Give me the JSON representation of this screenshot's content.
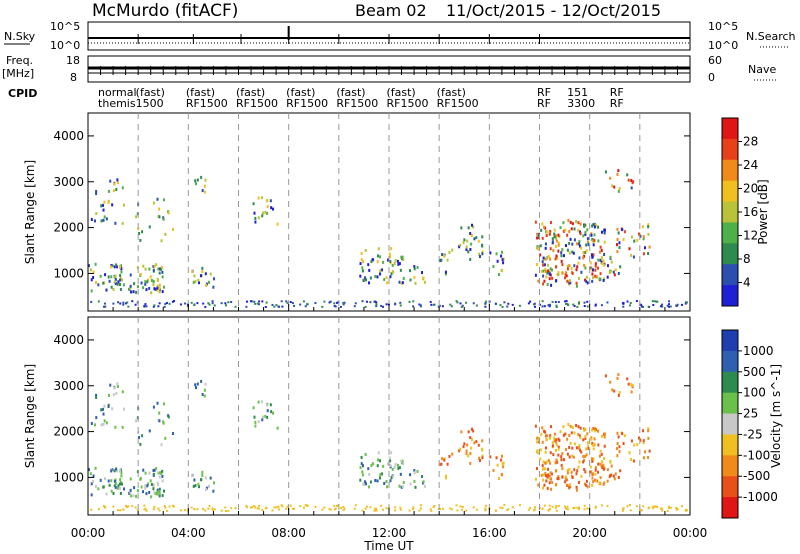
{
  "header": {
    "title": "McMurdo (fitACF)",
    "beam": "Beam 02",
    "date_range": "11/Oct/2015 - 12/Oct/2015"
  },
  "status_panels": {
    "nsky_label": "N.Sky",
    "nsky_ticks": [
      "10^5",
      "10^0"
    ],
    "nsearch_label": "N.Search",
    "nsearch_ticks": [
      "10^5",
      "10^0"
    ],
    "freq_label": "Freq.",
    "freq_unit": "[MHz]",
    "freq_ticks": [
      "18",
      "8"
    ],
    "nave_label": "Nave",
    "nave_ticks": [
      "60",
      "0"
    ],
    "cpid_label": "CPID",
    "cpid_line1": [
      "normal",
      "(fast)",
      "(fast)",
      "(fast)",
      "(fast)",
      "(fast)",
      "(fast)",
      "(fast)",
      "RF",
      "151",
      "RF"
    ],
    "cpid_line2": [
      "themis",
      "1500",
      "RF1500",
      "RF1500",
      "RF1500",
      "RF1500",
      "RF1500",
      "RF1500",
      "RF",
      "3300",
      "RF"
    ]
  },
  "colors": {
    "power_scale": [
      "#1f1fd6",
      "#2a4fb0",
      "#2f8a4f",
      "#4fb04a",
      "#b8c33a",
      "#f0c020",
      "#f08a1a",
      "#e8401a",
      "#e01515"
    ],
    "velocity_scale": [
      "#1f3fb0",
      "#2f5fb0",
      "#2f8a4f",
      "#6ac04a",
      "#c8c8c8",
      "#f0c020",
      "#f08a1a",
      "#e8501a",
      "#e01515"
    ]
  },
  "chart_data": [
    {
      "type": "heatmap",
      "title": "Power",
      "ylabel": "Slant Range [km]",
      "xlabel": "Time UT",
      "xlim": [
        0,
        24
      ],
      "ylim": [
        180,
        4500
      ],
      "x_ticks": [
        "00:00",
        "04:00",
        "08:00",
        "12:00",
        "16:00",
        "20:00",
        "00:00"
      ],
      "y_ticks": [
        "1000",
        "2000",
        "3000",
        "4000"
      ],
      "colorbar_label": "Power [dB]",
      "colorbar_ticks": [
        "4",
        "8",
        "12",
        "16",
        "20",
        "24",
        "28"
      ],
      "range": [
        0,
        30
      ],
      "grid": "dashed vertical lines every 2 hours"
    },
    {
      "type": "heatmap",
      "title": "Velocity",
      "ylabel": "Slant Range [km]",
      "xlabel": "Time UT",
      "xlim": [
        0,
        24
      ],
      "ylim": [
        180,
        4500
      ],
      "x_ticks": [
        "00:00",
        "04:00",
        "08:00",
        "12:00",
        "16:00",
        "20:00",
        "00:00"
      ],
      "y_ticks": [
        "1000",
        "2000",
        "3000",
        "4000"
      ],
      "colorbar_label": "Velocity [m s^-1]",
      "colorbar_ticks": [
        "1000",
        "500",
        "100",
        "25",
        "-25",
        "-100",
        "-500",
        "-1000"
      ],
      "grid": "dashed vertical lines every 2 hours"
    }
  ]
}
